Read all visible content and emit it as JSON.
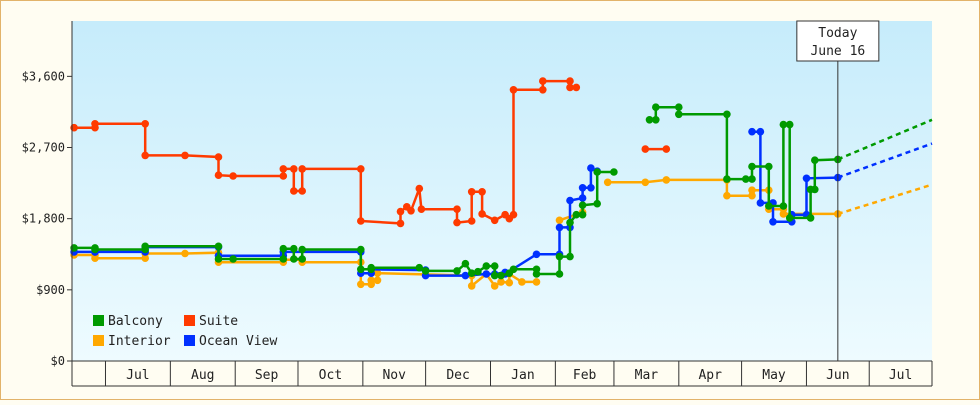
{
  "chart_data": {
    "type": "line",
    "title": "",
    "xlabel": "",
    "ylabel": "",
    "ylim": [
      0,
      4300
    ],
    "y_ticks": [
      0,
      900,
      1800,
      2700,
      3600
    ],
    "y_tick_labels": [
      "$0",
      "$900",
      "$1,800",
      "$2,700",
      "$3,600"
    ],
    "x_range": [
      "2024-06-15",
      "2025-07-31"
    ],
    "month_ticks": [
      {
        "date": "2024-06-15",
        "label": ""
      },
      {
        "date": "2024-07-01",
        "label": "Jul"
      },
      {
        "date": "2024-08-01",
        "label": "Aug"
      },
      {
        "date": "2024-09-01",
        "label": "Sep"
      },
      {
        "date": "2024-10-01",
        "label": "Oct"
      },
      {
        "date": "2024-11-01",
        "label": "Nov"
      },
      {
        "date": "2024-12-01",
        "label": "Dec"
      },
      {
        "date": "2025-01-01",
        "label": "Jan"
      },
      {
        "date": "2025-02-01",
        "label": "Feb"
      },
      {
        "date": "2025-03-01",
        "label": "Mar"
      },
      {
        "date": "2025-04-01",
        "label": "Apr"
      },
      {
        "date": "2025-05-01",
        "label": "May"
      },
      {
        "date": "2025-06-01",
        "label": "Jun"
      },
      {
        "date": "2025-07-01",
        "label": "Jul"
      }
    ],
    "today": {
      "date": "2025-06-16",
      "label_line1": "Today",
      "label_line2": "June 16"
    },
    "grid": false,
    "legend_position": "bottom-left",
    "series": [
      {
        "name": "Suite",
        "color": "#ff3a00",
        "segments": [
          [
            [
              "2024-06-16",
              2950
            ],
            [
              "2024-06-26",
              2950
            ],
            [
              "2024-06-26",
              3000
            ],
            [
              "2024-07-20",
              3000
            ],
            [
              "2024-07-20",
              2600
            ],
            [
              "2024-08-08",
              2600
            ],
            [
              "2024-08-24",
              2580
            ],
            [
              "2024-08-24",
              2350
            ],
            [
              "2024-08-31",
              2340
            ],
            [
              "2024-09-24",
              2340
            ],
            [
              "2024-09-24",
              2430
            ],
            [
              "2024-09-29",
              2430
            ],
            [
              "2024-09-29",
              2150
            ],
            [
              "2024-10-03",
              2150
            ],
            [
              "2024-10-03",
              2430
            ],
            [
              "2024-10-31",
              2430
            ],
            [
              "2024-10-31",
              1770
            ],
            [
              "2024-11-19",
              1740
            ],
            [
              "2024-11-19",
              1890
            ],
            [
              "2024-11-22",
              1950
            ],
            [
              "2024-11-24",
              1900
            ],
            [
              "2024-11-28",
              2180
            ],
            [
              "2024-11-29",
              1920
            ],
            [
              "2024-12-16",
              1920
            ],
            [
              "2024-12-16",
              1750
            ],
            [
              "2024-12-23",
              1770
            ],
            [
              "2024-12-23",
              2140
            ],
            [
              "2024-12-28",
              2140
            ],
            [
              "2024-12-28",
              1860
            ],
            [
              "2025-01-03",
              1780
            ],
            [
              "2025-01-08",
              1850
            ],
            [
              "2025-01-10",
              1800
            ],
            [
              "2025-01-12",
              1850
            ],
            [
              "2025-01-12",
              3430
            ],
            [
              "2025-01-26",
              3430
            ],
            [
              "2025-01-26",
              3540
            ],
            [
              "2025-02-08",
              3540
            ],
            [
              "2025-02-08",
              3460
            ],
            [
              "2025-02-11",
              3460
            ]
          ],
          [
            [
              "2025-03-16",
              2680
            ],
            [
              "2025-03-26",
              2680
            ]
          ]
        ]
      },
      {
        "name": "Interior",
        "color": "#ffa800",
        "segments": [
          [
            [
              "2024-06-16",
              1340
            ],
            [
              "2024-06-26",
              1340
            ],
            [
              "2024-06-26",
              1300
            ],
            [
              "2024-07-20",
              1300
            ],
            [
              "2024-07-20",
              1360
            ],
            [
              "2024-08-08",
              1360
            ],
            [
              "2024-08-24",
              1370
            ],
            [
              "2024-08-24",
              1250
            ],
            [
              "2024-09-24",
              1250
            ],
            [
              "2024-09-24",
              1280
            ],
            [
              "2024-10-03",
              1280
            ],
            [
              "2024-10-03",
              1250
            ],
            [
              "2024-10-31",
              1250
            ],
            [
              "2024-10-31",
              970
            ],
            [
              "2024-11-05",
              970
            ],
            [
              "2024-11-05",
              1020
            ],
            [
              "2024-11-08",
              1020
            ],
            [
              "2024-11-08",
              1110
            ],
            [
              "2024-12-23",
              1080
            ],
            [
              "2024-12-23",
              950
            ],
            [
              "2024-12-30",
              1100
            ],
            [
              "2025-01-03",
              950
            ],
            [
              "2025-01-06",
              1000
            ],
            [
              "2025-01-10",
              990
            ],
            [
              "2025-01-10",
              1100
            ],
            [
              "2025-01-16",
              1000
            ],
            [
              "2025-01-23",
              1000
            ]
          ],
          [
            [
              "2025-02-03",
              1780
            ],
            [
              "2025-02-14",
              1880
            ]
          ],
          [
            [
              "2025-02-26",
              2260
            ],
            [
              "2025-03-16",
              2260
            ],
            [
              "2025-03-26",
              2290
            ],
            [
              "2025-04-24",
              2290
            ],
            [
              "2025-04-24",
              2090
            ],
            [
              "2025-05-06",
              2090
            ],
            [
              "2025-05-06",
              2160
            ],
            [
              "2025-05-14",
              2160
            ],
            [
              "2025-05-14",
              1920
            ],
            [
              "2025-05-21",
              1920
            ],
            [
              "2025-05-21",
              1860
            ],
            [
              "2025-06-16",
              1860
            ]
          ]
        ]
      },
      {
        "name": "Ocean View",
        "color": "#0030ff",
        "segments": [
          [
            [
              "2024-06-16",
              1380
            ],
            [
              "2024-06-26",
              1380
            ],
            [
              "2024-06-26",
              1380
            ],
            [
              "2024-07-20",
              1380
            ],
            [
              "2024-07-20",
              1440
            ],
            [
              "2024-08-24",
              1440
            ],
            [
              "2024-08-24",
              1330
            ],
            [
              "2024-09-24",
              1330
            ],
            [
              "2024-09-24",
              1380
            ],
            [
              "2024-10-31",
              1380
            ],
            [
              "2024-10-31",
              1110
            ],
            [
              "2024-11-05",
              1110
            ],
            [
              "2024-11-05",
              1160
            ],
            [
              "2024-12-01",
              1150
            ],
            [
              "2024-12-01",
              1080
            ],
            [
              "2024-12-20",
              1080
            ],
            [
              "2024-12-30",
              1100
            ],
            [
              "2025-01-03",
              1100
            ],
            [
              "2025-01-08",
              1120
            ],
            [
              "2025-01-08",
              1100
            ],
            [
              "2025-01-23",
              1350
            ],
            [
              "2025-02-03",
              1350
            ],
            [
              "2025-02-03",
              1690
            ],
            [
              "2025-02-08",
              1690
            ],
            [
              "2025-02-08",
              2030
            ],
            [
              "2025-02-14",
              2060
            ],
            [
              "2025-02-14",
              2190
            ],
            [
              "2025-02-18",
              2190
            ],
            [
              "2025-02-18",
              2440
            ],
            [
              "2025-02-21",
              2400
            ]
          ],
          [
            [
              "2025-05-06",
              2900
            ],
            [
              "2025-05-10",
              2900
            ],
            [
              "2025-05-10",
              2000
            ],
            [
              "2025-05-16",
              2000
            ],
            [
              "2025-05-16",
              1760
            ],
            [
              "2025-05-25",
              1760
            ],
            [
              "2025-05-25",
              1850
            ],
            [
              "2025-06-01",
              1850
            ],
            [
              "2025-06-01",
              2310
            ],
            [
              "2025-06-16",
              2320
            ]
          ]
        ]
      },
      {
        "name": "Balcony",
        "color": "#009a00",
        "segments": [
          [
            [
              "2024-06-16",
              1430
            ],
            [
              "2024-06-26",
              1430
            ],
            [
              "2024-06-26",
              1410
            ],
            [
              "2024-07-20",
              1410
            ],
            [
              "2024-07-20",
              1450
            ],
            [
              "2024-08-24",
              1450
            ],
            [
              "2024-08-24",
              1290
            ],
            [
              "2024-08-31",
              1290
            ],
            [
              "2024-09-24",
              1290
            ],
            [
              "2024-09-24",
              1420
            ],
            [
              "2024-09-29",
              1420
            ],
            [
              "2024-09-29",
              1290
            ],
            [
              "2024-10-03",
              1290
            ],
            [
              "2024-10-03",
              1410
            ],
            [
              "2024-10-31",
              1410
            ],
            [
              "2024-10-31",
              1160
            ],
            [
              "2024-11-05",
              1160
            ],
            [
              "2024-11-05",
              1180
            ],
            [
              "2024-11-28",
              1180
            ],
            [
              "2024-12-01",
              1140
            ],
            [
              "2024-12-16",
              1140
            ],
            [
              "2024-12-20",
              1230
            ],
            [
              "2024-12-23",
              1110
            ],
            [
              "2024-12-26",
              1130
            ],
            [
              "2024-12-30",
              1200
            ],
            [
              "2025-01-03",
              1200
            ],
            [
              "2025-01-03",
              1080
            ],
            [
              "2025-01-06",
              1080
            ],
            [
              "2025-01-10",
              1110
            ],
            [
              "2025-01-12",
              1160
            ],
            [
              "2025-01-23",
              1160
            ],
            [
              "2025-01-23",
              1100
            ],
            [
              "2025-02-03",
              1100
            ],
            [
              "2025-02-03",
              1320
            ],
            [
              "2025-02-08",
              1320
            ],
            [
              "2025-02-08",
              1750
            ],
            [
              "2025-02-11",
              1850
            ],
            [
              "2025-02-14",
              1850
            ],
            [
              "2025-02-14",
              1970
            ],
            [
              "2025-02-21",
              1990
            ],
            [
              "2025-02-21",
              2390
            ],
            [
              "2025-03-01",
              2390
            ]
          ],
          [
            [
              "2025-03-18",
              3050
            ],
            [
              "2025-03-21",
              3050
            ],
            [
              "2025-03-21",
              3210
            ],
            [
              "2025-04-01",
              3210
            ],
            [
              "2025-04-01",
              3120
            ],
            [
              "2025-04-24",
              3120
            ],
            [
              "2025-04-24",
              2300
            ],
            [
              "2025-05-03",
              2300
            ],
            [
              "2025-05-06",
              2300
            ],
            [
              "2025-05-06",
              2460
            ],
            [
              "2025-05-14",
              2460
            ],
            [
              "2025-05-14",
              1960
            ],
            [
              "2025-05-21",
              1960
            ],
            [
              "2025-05-21",
              2990
            ],
            [
              "2025-05-24",
              2990
            ],
            [
              "2025-05-24",
              1810
            ],
            [
              "2025-06-03",
              1810
            ],
            [
              "2025-06-03",
              2170
            ],
            [
              "2025-06-05",
              2170
            ],
            [
              "2025-06-05",
              2540
            ],
            [
              "2025-06-16",
              2550
            ]
          ]
        ]
      }
    ],
    "projections": [
      {
        "series": "Balcony",
        "from": [
          "2025-06-16",
          2550
        ],
        "to": [
          "2025-07-31",
          3050
        ],
        "color": "#009a00"
      },
      {
        "series": "Ocean View",
        "from": [
          "2025-06-16",
          2320
        ],
        "to": [
          "2025-07-31",
          2750
        ],
        "color": "#0030ff"
      },
      {
        "series": "Interior",
        "from": [
          "2025-06-16",
          1860
        ],
        "to": [
          "2025-07-31",
          2230
        ],
        "color": "#ffa800"
      }
    ],
    "legend": [
      {
        "name": "Balcony",
        "color": "#009a00"
      },
      {
        "name": "Suite",
        "color": "#ff3a00"
      },
      {
        "name": "Interior",
        "color": "#ffa800"
      },
      {
        "name": "Ocean View",
        "color": "#0030ff"
      }
    ]
  }
}
